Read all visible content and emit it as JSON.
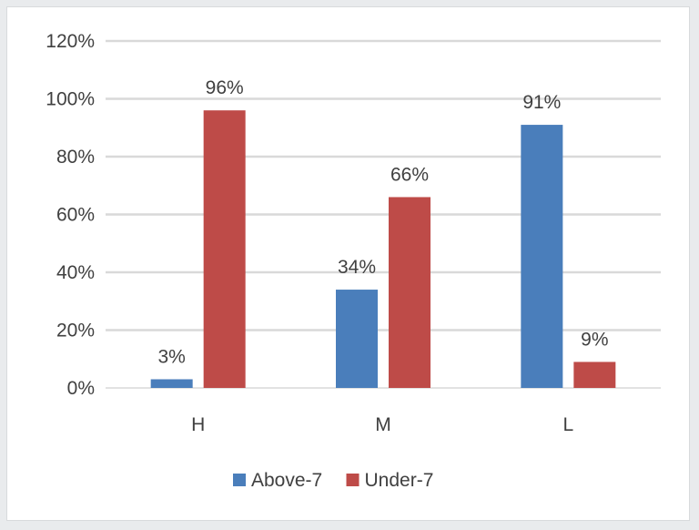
{
  "chart_data": {
    "type": "bar",
    "categories": [
      "H",
      "M",
      "L"
    ],
    "series": [
      {
        "name": "Above-7",
        "values": [
          3,
          34,
          91
        ],
        "labels": [
          "3%",
          "34%",
          "91%"
        ],
        "color": "#4a7ebb"
      },
      {
        "name": "Under-7",
        "values": [
          96,
          66,
          9
        ],
        "labels": [
          "96%",
          "66%",
          "9%"
        ],
        "color": "#be4b48"
      }
    ],
    "ylim": [
      0,
      120
    ],
    "yticks": [
      0,
      20,
      40,
      60,
      80,
      100,
      120
    ],
    "ytick_labels": [
      "0%",
      "20%",
      "40%",
      "60%",
      "80%",
      "100%",
      "120%"
    ],
    "grid": true,
    "legend_position": "bottom",
    "title": "",
    "xlabel": "",
    "ylabel": ""
  },
  "colors": {
    "grid": "#d9d9d9",
    "text": "#404040",
    "frame_bg": "#e9ebed"
  }
}
